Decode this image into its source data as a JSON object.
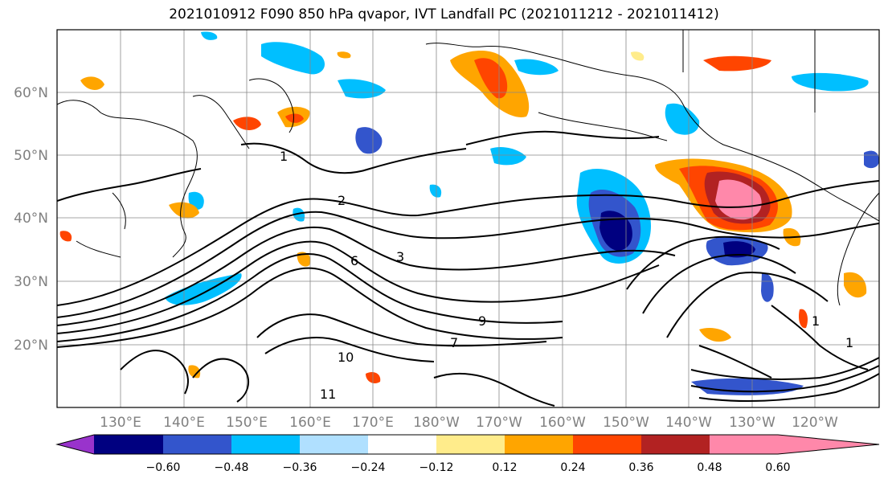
{
  "title": "2021010912 F090 850 hPa qvapor, IVT Landfall PC (2021011212 - 2021011412)",
  "map": {
    "lat_labels": [
      "60°N",
      "50°N",
      "40°N",
      "30°N",
      "20°N"
    ],
    "lon_labels": [
      "130°E",
      "140°E",
      "150°E",
      "160°E",
      "170°E",
      "180°W",
      "170°W",
      "160°W",
      "150°W",
      "140°W",
      "130°W",
      "120°W"
    ],
    "contour_labels": [
      "1",
      "2",
      "3",
      "6",
      "7",
      "9",
      "10",
      "11",
      "1",
      "1"
    ]
  },
  "colorbar": {
    "ticks": [
      "−0.60",
      "−0.48",
      "−0.36",
      "−0.24",
      "−0.12",
      "0.12",
      "0.24",
      "0.36",
      "0.48",
      "0.60"
    ],
    "colors": [
      "#9933cc",
      "#000080",
      "#3355cc",
      "#00bfff",
      "#b0e0ff",
      "#ffffff",
      "#ffec8b",
      "#ffa500",
      "#ff4500",
      "#b22222",
      "#ff88aa"
    ]
  }
}
